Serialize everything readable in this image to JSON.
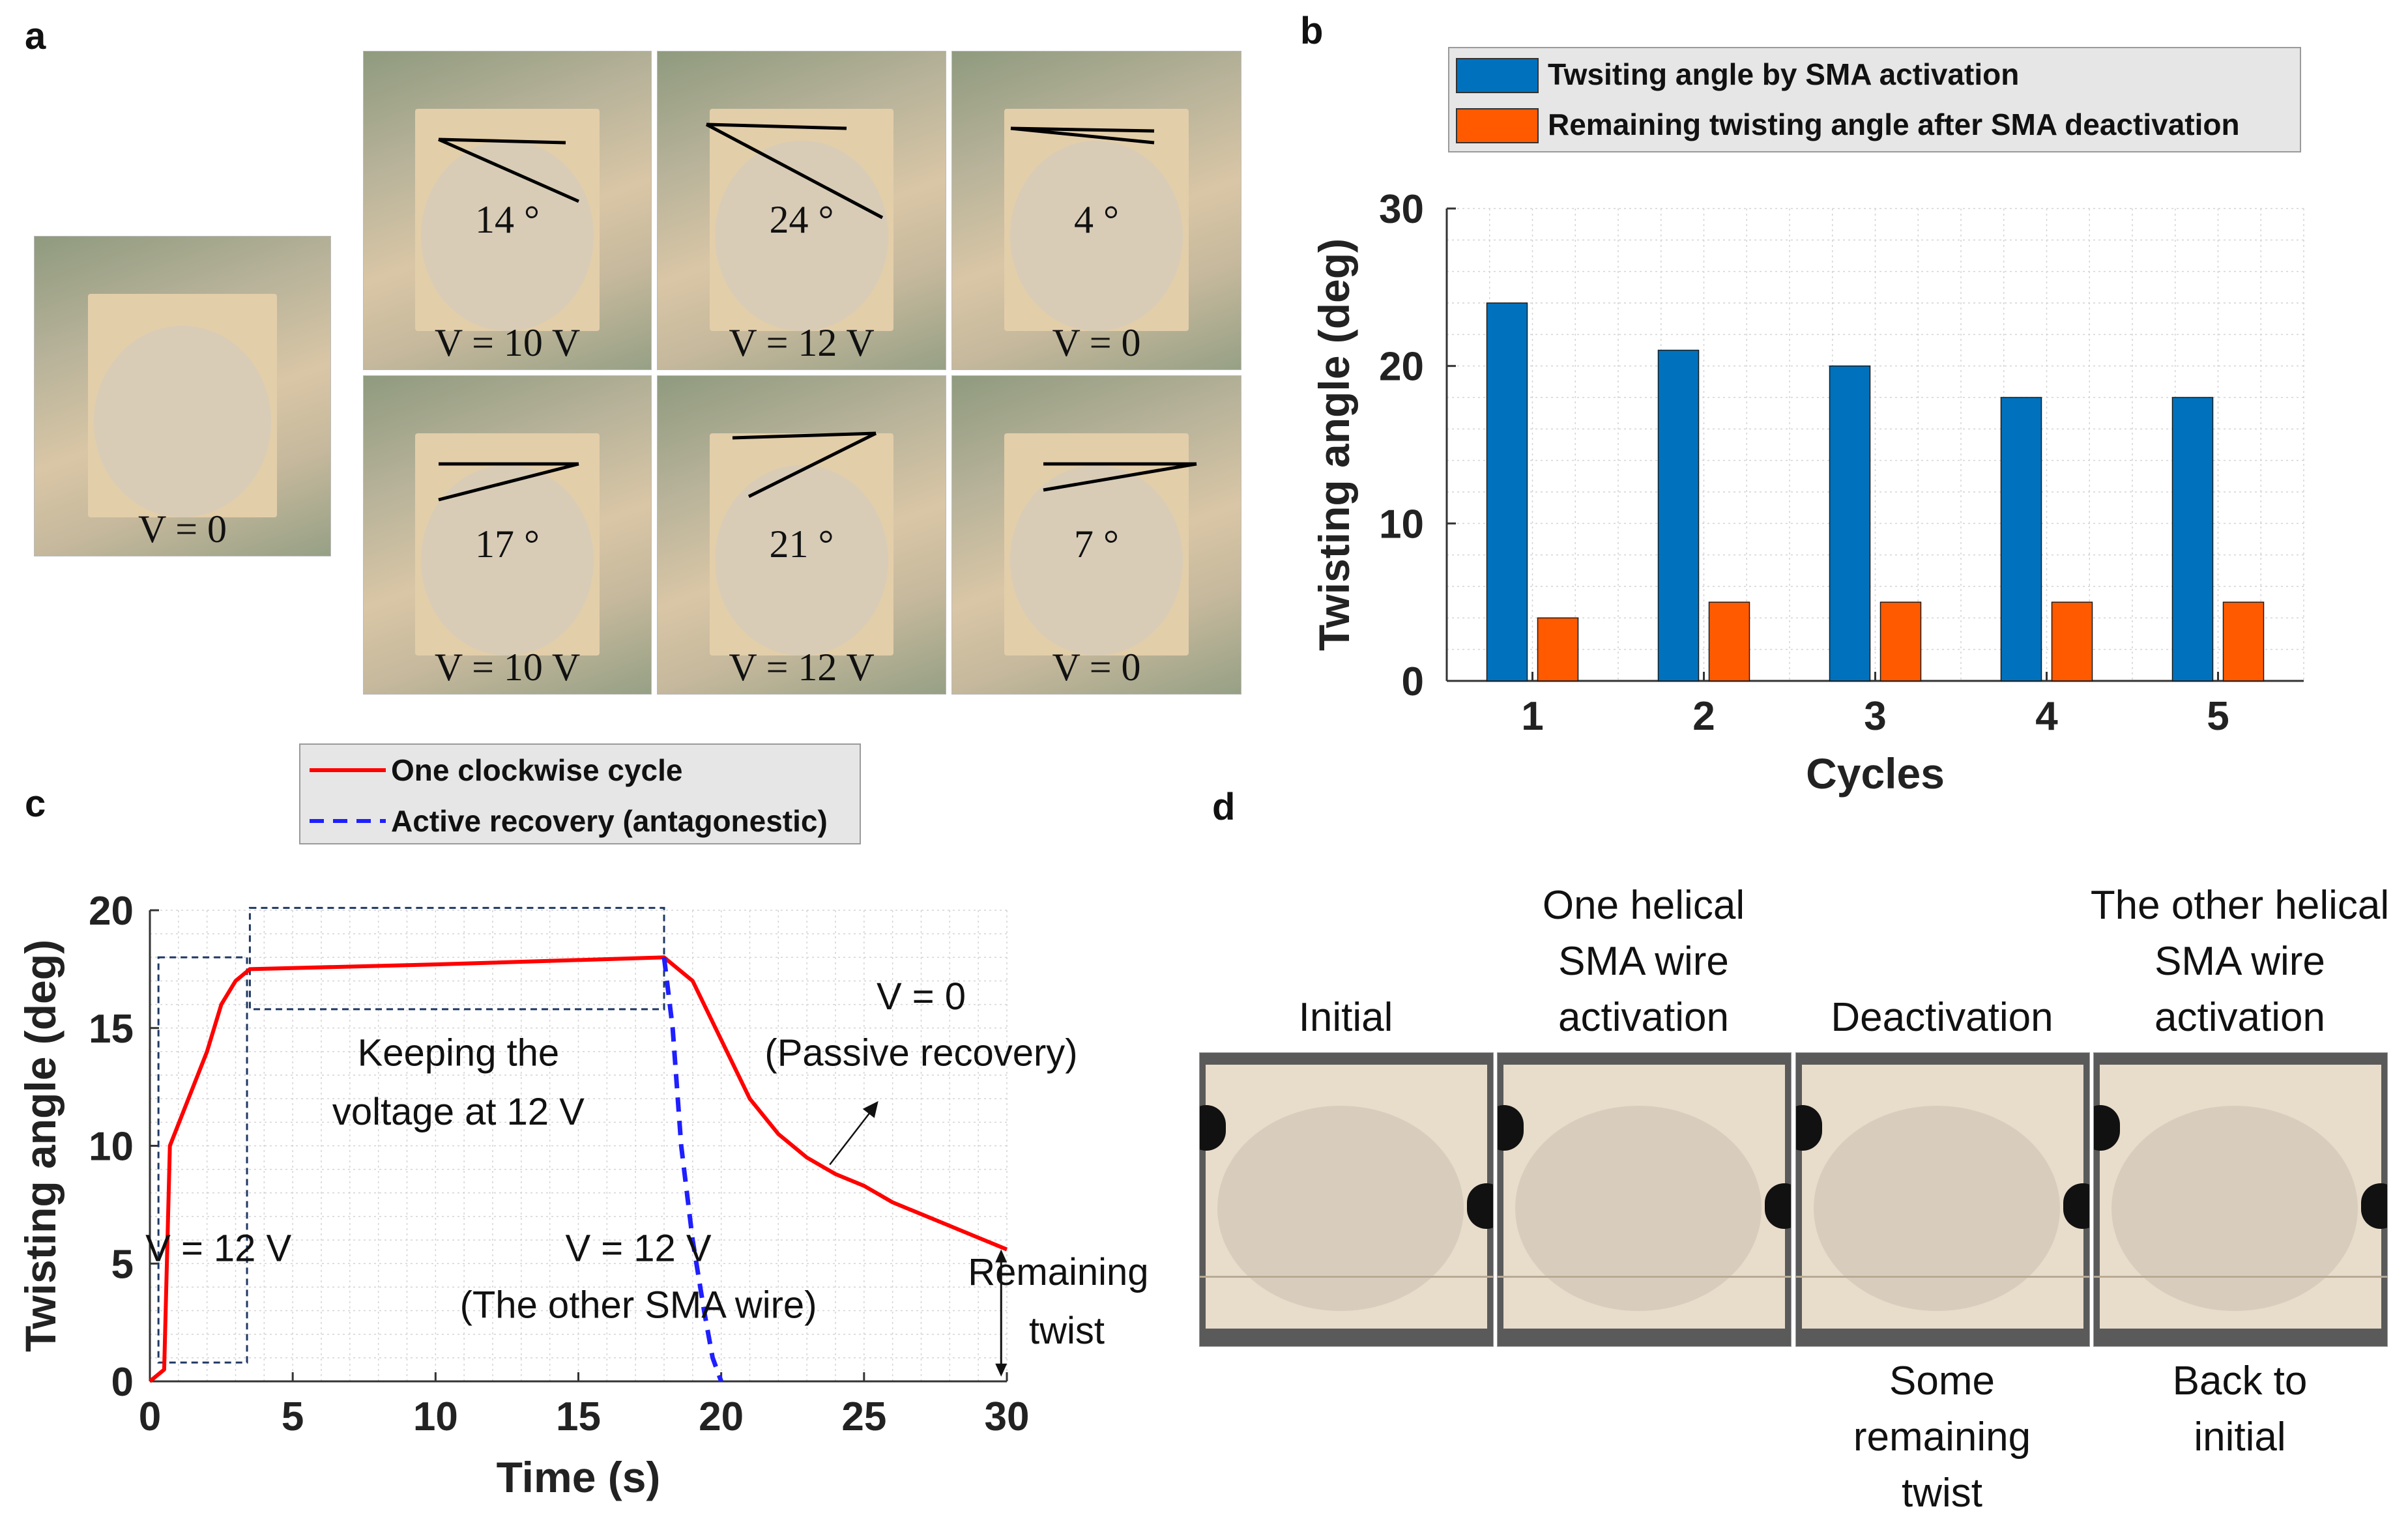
{
  "panels": {
    "a": "a",
    "b": "b",
    "c": "c",
    "d": "d"
  },
  "panel_a": {
    "initial": {
      "label": "V = 0"
    },
    "photos": [
      {
        "angle": "14 °",
        "label": "V = 10 V"
      },
      {
        "angle": "24 °",
        "label": "V = 12 V"
      },
      {
        "angle": "4 °",
        "label": "V = 0"
      },
      {
        "angle": "17 °",
        "label": "V = 10 V"
      },
      {
        "angle": "21 °",
        "label": "V = 12 V"
      },
      {
        "angle": "7 °",
        "label": "V = 0"
      }
    ]
  },
  "panel_b_legend": {
    "series1": "Twsiting angle by SMA activation",
    "series2": "Remaining twisting angle after SMA deactivation"
  },
  "panel_c_legend": {
    "series1": "One clockwise cycle",
    "series2": "Active recovery (antagonestic)"
  },
  "panel_c_annotations": {
    "v12": "V = 12 V",
    "keep1": "Keeping the",
    "keep2": "voltage at 12 V",
    "other1": "V = 12 V",
    "other2": "(The other SMA wire)",
    "v0_1": "V = 0",
    "v0_2": "(Passive recovery)",
    "rem1": "Remaining",
    "rem2": "twist"
  },
  "panel_d": {
    "items": [
      {
        "top": [
          "Initial"
        ],
        "bottom": []
      },
      {
        "top": [
          "One helical",
          "SMA wire",
          "activation"
        ],
        "bottom": []
      },
      {
        "top": [
          "Deactivation"
        ],
        "bottom": [
          "Some",
          "remaining",
          "twist"
        ]
      },
      {
        "top": [
          "The other helical",
          "SMA wire",
          "activation"
        ],
        "bottom": [
          "Back to",
          "initial"
        ]
      }
    ]
  },
  "colors": {
    "blue_bar": "#0072BD",
    "orange_bar": "#FF5A00",
    "red_line": "#FF0000",
    "blue_dash": "#1F1FFF",
    "box_dash": "#1F3864"
  },
  "chart_data": [
    {
      "id": "b",
      "type": "bar",
      "title": "",
      "xlabel": "Cycles",
      "ylabel": "Twisting angle (deg)",
      "categories": [
        "1",
        "2",
        "3",
        "4",
        "5"
      ],
      "series": [
        {
          "name": "Twsiting angle by SMA activation",
          "values": [
            24,
            21,
            20,
            18,
            18
          ]
        },
        {
          "name": "Remaining twisting angle after SMA deactivation",
          "values": [
            4,
            5,
            5,
            5,
            5
          ]
        }
      ],
      "ylim": [
        0,
        30
      ],
      "yticks": [
        "0",
        "10",
        "20",
        "30"
      ],
      "grid": true,
      "legend": "top"
    },
    {
      "id": "c",
      "type": "line",
      "title": "",
      "xlabel": "Time (s)",
      "ylabel": "Twisting angle (deg)",
      "xlim": [
        0,
        30
      ],
      "ylim": [
        0,
        20
      ],
      "xticks": [
        "0",
        "5",
        "10",
        "15",
        "20",
        "25",
        "30"
      ],
      "yticks": [
        "0",
        "5",
        "10",
        "15",
        "20"
      ],
      "grid": true,
      "legend": "top",
      "series": [
        {
          "name": "One clockwise cycle",
          "x": [
            0,
            0.5,
            0.7,
            2,
            2.5,
            3,
            3.5,
            10,
            18,
            19,
            20,
            21,
            22,
            23,
            24,
            25,
            26,
            27,
            28,
            29,
            30
          ],
          "y": [
            0,
            0.5,
            10,
            14,
            16,
            17,
            17.5,
            17.7,
            18,
            17,
            14.5,
            12,
            10.5,
            9.5,
            8.8,
            8.3,
            7.6,
            7.1,
            6.6,
            6.1,
            5.6
          ]
        },
        {
          "name": "Active recovery (antagonestic)",
          "x": [
            18,
            18.3,
            18.6,
            19,
            19.4,
            19.7,
            20
          ],
          "y": [
            18,
            15,
            10,
            6,
            3,
            1,
            0
          ]
        }
      ],
      "regions": [
        {
          "x": [
            0.3,
            3.4
          ],
          "y": [
            0.8,
            18
          ],
          "label": "V = 12 V"
        },
        {
          "x": [
            3.5,
            18
          ],
          "y": [
            15.8,
            20.1
          ],
          "label": "Keeping the voltage at 12 V"
        }
      ]
    }
  ]
}
